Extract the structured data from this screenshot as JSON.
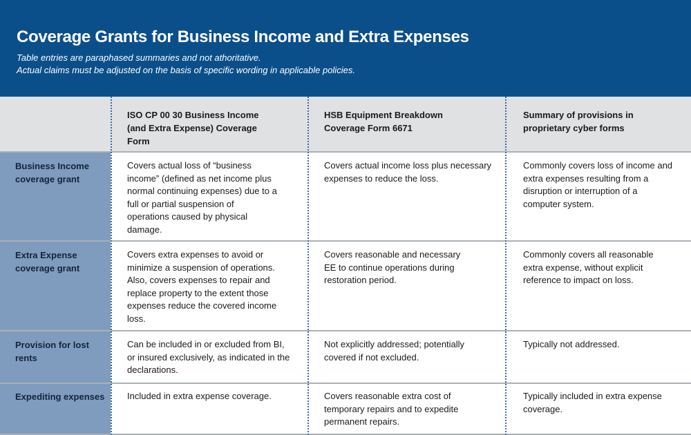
{
  "title": "Coverage Grants for Business Income and Extra Expenses",
  "subtitle_line1": "Table entries are paraphased summaries and not athoritative.",
  "subtitle_line2": "Actual claims must be adjusted on the basis of specific wording in applicable policies.",
  "colors": {
    "header_bg": "#0b4f8a",
    "column_header_bg": "#dfe1e3",
    "row_label_bg": "#7f9cbf",
    "divider": "#3e6a9c"
  },
  "table": {
    "columns": [
      "ISO CP 00 30 Business Income (and Extra Expense) Coverage Form",
      "HSB Equipment Breakdown Coverage Form 6671",
      "Summary of provisions in proprietary cyber forms"
    ],
    "rows": [
      {
        "label": "Business Income coverage grant",
        "cells": [
          "Covers actual loss of “business income” (defined as net income plus normal continuing expenses) due to a full or partial suspension of operations caused by physical damage.",
          "Covers actual income loss plus necessary expenses to reduce the loss.",
          "Commonly covers loss of income and extra expenses resulting from a disruption or interruption of a computer system."
        ]
      },
      {
        "label": "Extra Expense coverage grant",
        "cells": [
          "Covers extra expenses to avoid or minimize a suspension of operations. Also, covers expenses to repair and replace property to the extent those expenses reduce the covered income loss.",
          "Covers reasonable and necessary EE to continue operations during restoration period.",
          "Commonly covers all reasonable extra expense, without explicit reference to impact on loss."
        ]
      },
      {
        "label": "Provision for lost rents",
        "cells": [
          "Can be included in or excluded from BI, or insured exclusively, as indicated in the declarations.",
          "Not explicitly addressed; potentially covered if not excluded.",
          "Typically not addressed."
        ]
      },
      {
        "label": "Expediting expenses",
        "cells": [
          "Included in extra expense coverage.",
          "Covers reasonable extra cost of temporary repairs and to expedite permanent repairs.",
          "Typically included in extra expense coverage."
        ]
      }
    ]
  }
}
